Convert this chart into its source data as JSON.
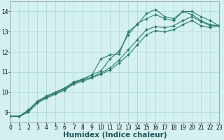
{
  "bg_color": "#d4f0f0",
  "line_color": "#2e7d6e",
  "grid_color": "#a8d8d8",
  "xlabel": "Humidex (Indice chaleur)",
  "xlabel_fontsize": 7.5,
  "tick_fontsize": 5.5,
  "xmin": 0,
  "xmax": 23,
  "ymin": 8.5,
  "ymax": 14.5,
  "yticks": [
    9,
    10,
    11,
    12,
    13,
    14
  ],
  "lines": [
    {
      "x": [
        0,
        1,
        2,
        3,
        4,
        5,
        6,
        7,
        8,
        9,
        10,
        11,
        12,
        13,
        14,
        15,
        16,
        17,
        18,
        19,
        20,
        21,
        22,
        23
      ],
      "y": [
        8.8,
        8.8,
        9.1,
        9.55,
        9.8,
        10.0,
        10.2,
        10.5,
        10.65,
        10.85,
        11.65,
        11.85,
        11.9,
        13.0,
        13.35,
        13.9,
        14.1,
        13.75,
        13.65,
        14.0,
        14.0,
        13.75,
        13.55,
        13.3
      ]
    },
    {
      "x": [
        0,
        1,
        2,
        3,
        4,
        5,
        6,
        7,
        8,
        9,
        10,
        11,
        12,
        13,
        14,
        15,
        16,
        17,
        18,
        19,
        20,
        21,
        22,
        23
      ],
      "y": [
        8.8,
        8.8,
        9.1,
        9.55,
        9.8,
        10.0,
        10.2,
        10.5,
        10.65,
        10.85,
        11.05,
        11.65,
        12.05,
        12.85,
        13.4,
        13.65,
        13.85,
        13.65,
        13.55,
        14.0,
        13.85,
        13.55,
        13.35,
        13.3
      ]
    },
    {
      "x": [
        0,
        1,
        2,
        3,
        4,
        5,
        6,
        7,
        8,
        9,
        10,
        11,
        12,
        13,
        14,
        15,
        16,
        17,
        18,
        19,
        20,
        21,
        22,
        23
      ],
      "y": [
        8.8,
        8.8,
        9.05,
        9.5,
        9.75,
        9.95,
        10.15,
        10.45,
        10.6,
        10.75,
        10.95,
        11.2,
        11.6,
        12.1,
        12.6,
        13.1,
        13.25,
        13.2,
        13.3,
        13.55,
        13.75,
        13.5,
        13.3,
        13.3
      ]
    },
    {
      "x": [
        0,
        1,
        2,
        3,
        4,
        5,
        6,
        7,
        8,
        9,
        10,
        11,
        12,
        13,
        14,
        15,
        16,
        17,
        18,
        19,
        20,
        21,
        22,
        23
      ],
      "y": [
        8.8,
        8.8,
        9.0,
        9.45,
        9.7,
        9.9,
        10.1,
        10.4,
        10.55,
        10.7,
        10.9,
        11.1,
        11.45,
        11.85,
        12.35,
        12.85,
        13.05,
        13.0,
        13.1,
        13.35,
        13.55,
        13.3,
        13.2,
        13.3
      ]
    }
  ],
  "marker": "D",
  "markersize": 2.0,
  "linewidth": 0.8
}
